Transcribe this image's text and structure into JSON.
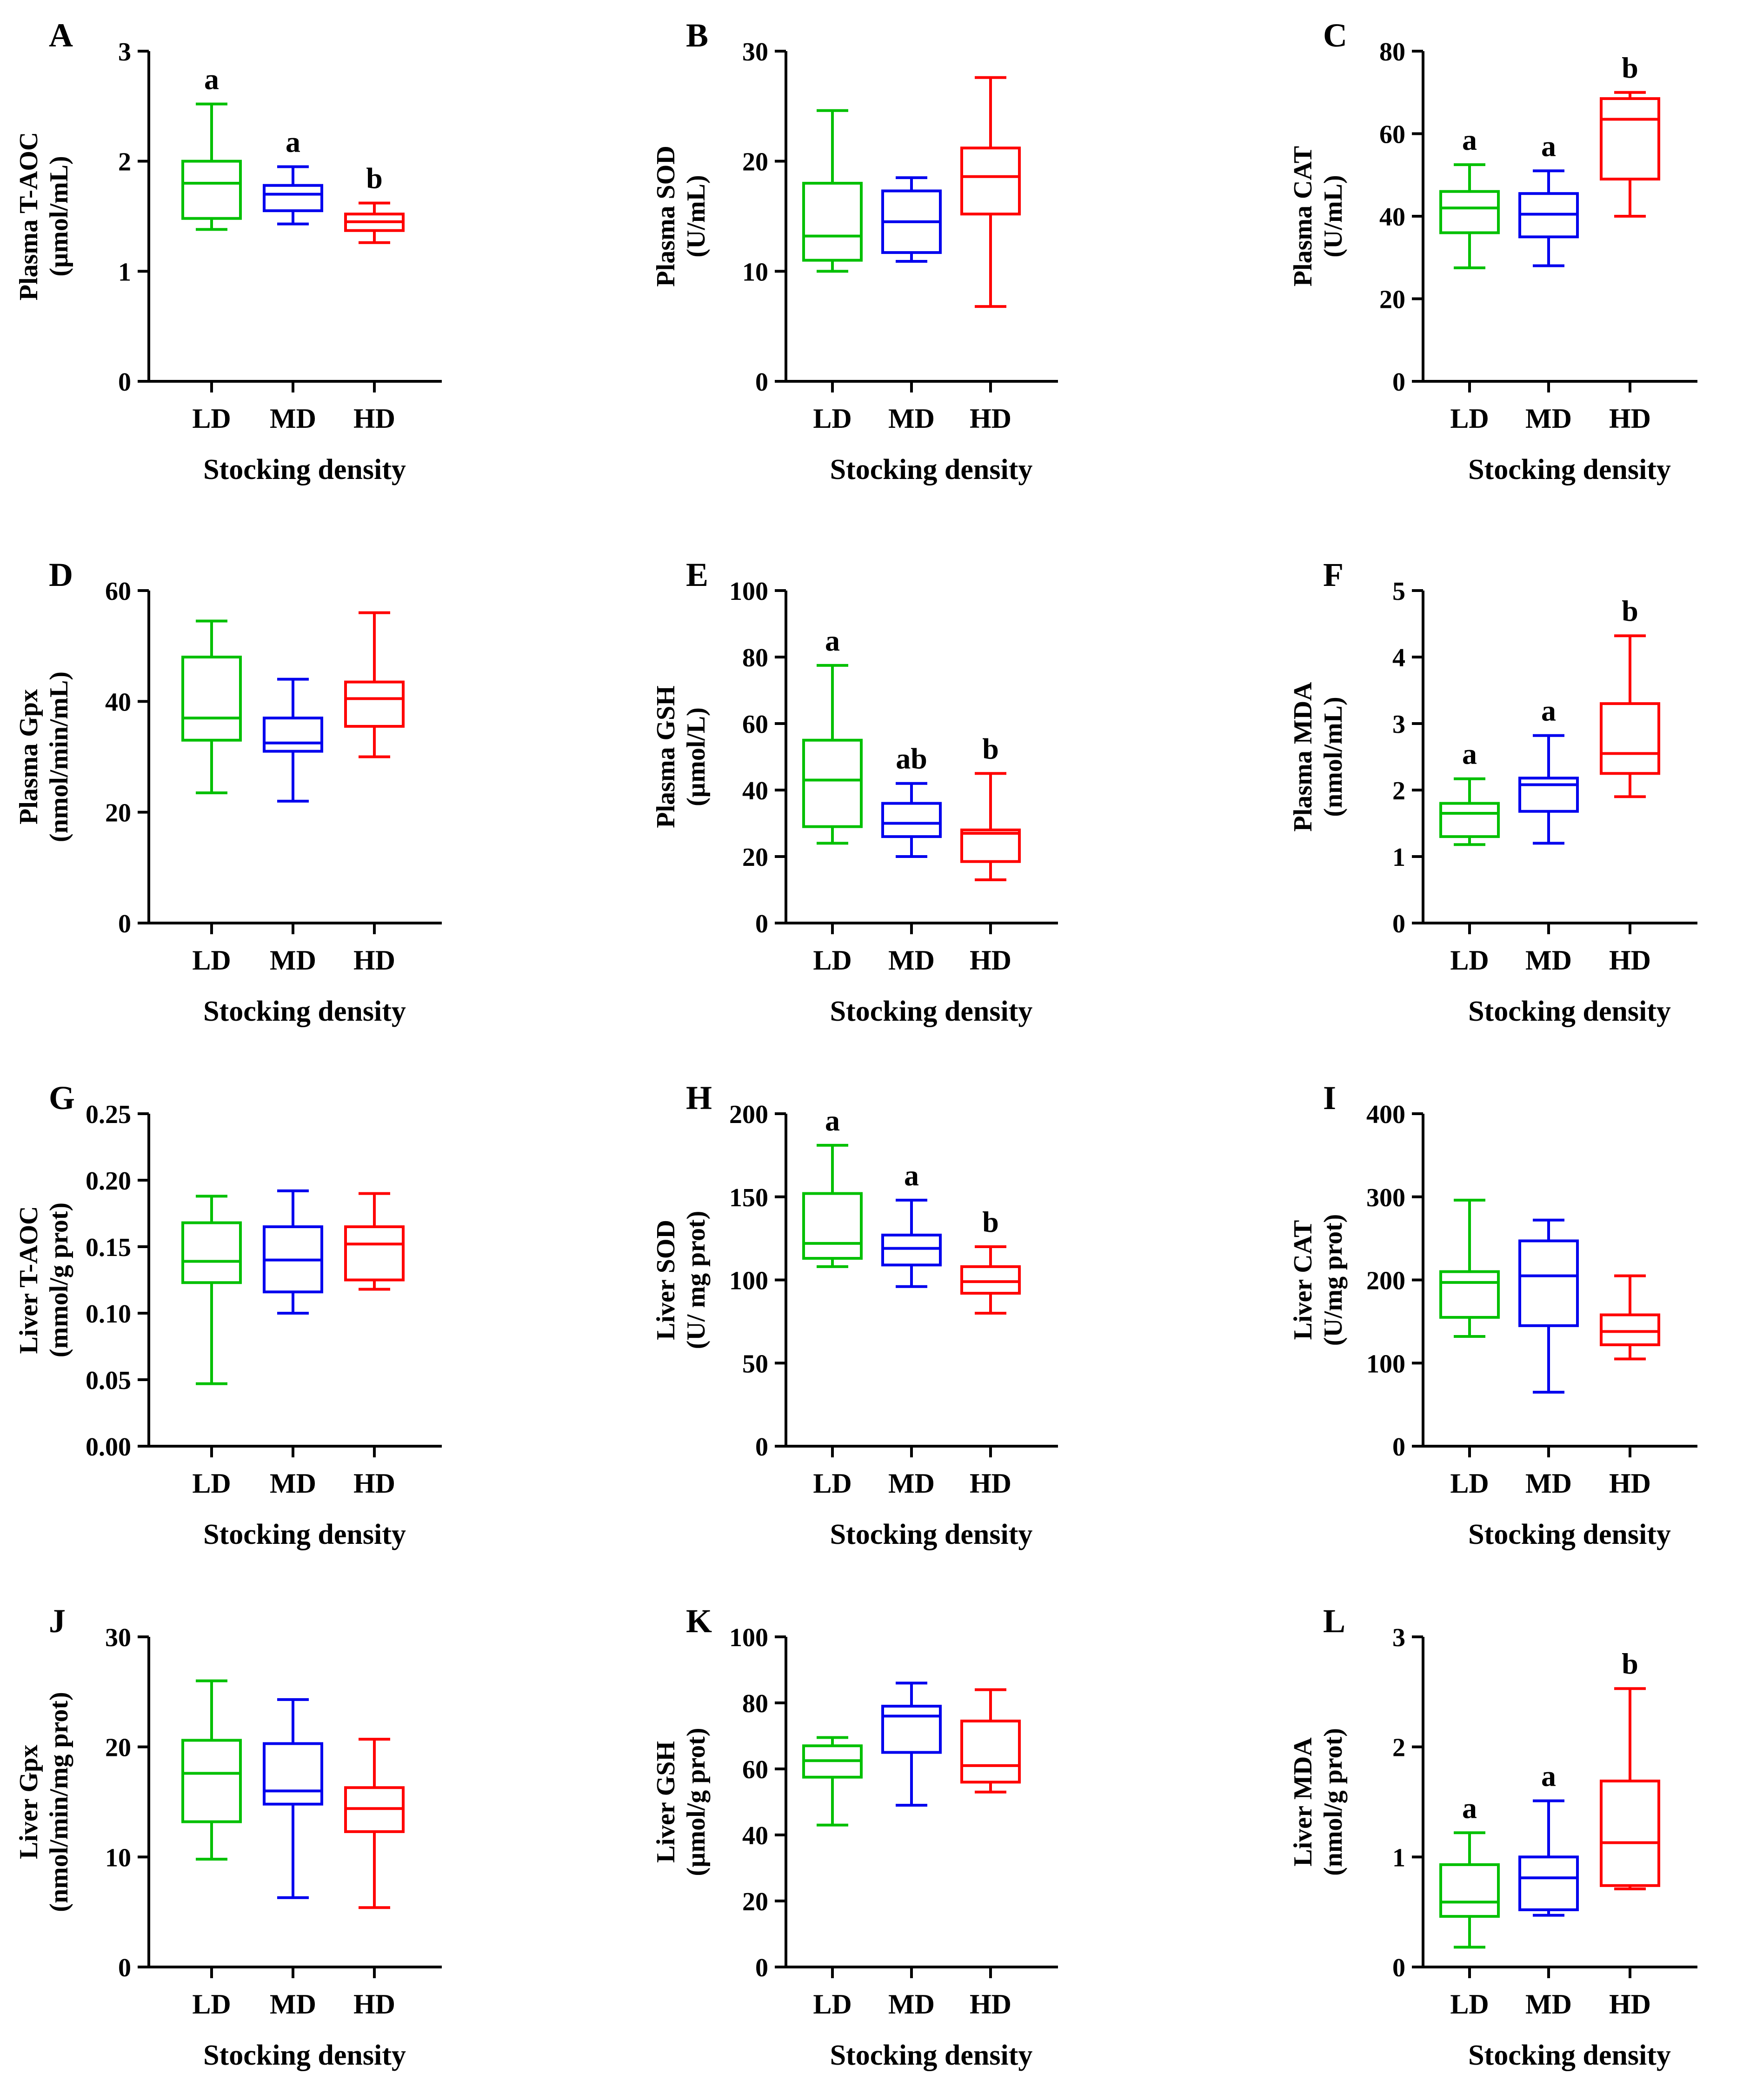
{
  "figure": {
    "colors": {
      "LD": "#00c000",
      "MD": "#0000ee",
      "HD": "#ff0000",
      "axis": "#000000"
    }
  },
  "chart_data": [
    {
      "id": "A",
      "type": "box",
      "panel_label": "A",
      "ylabel_lines": [
        "Plasma T-AOC",
        "(µmol/mL)"
      ],
      "xlabel": "Stocking density",
      "categories": [
        "LD",
        "MD",
        "HD"
      ],
      "ylim": [
        0,
        3
      ],
      "yticks": [
        "0",
        "1",
        "2",
        "3"
      ],
      "boxes": [
        {
          "group": "LD",
          "min": 1.38,
          "q1": 1.48,
          "median": 1.8,
          "q3": 2.0,
          "max": 2.52
        },
        {
          "group": "MD",
          "min": 1.43,
          "q1": 1.55,
          "median": 1.7,
          "q3": 1.78,
          "max": 1.95
        },
        {
          "group": "HD",
          "min": 1.26,
          "q1": 1.37,
          "median": 1.45,
          "q3": 1.52,
          "max": 1.62
        }
      ],
      "significance": [
        "a",
        "a",
        "b"
      ]
    },
    {
      "id": "B",
      "type": "box",
      "panel_label": "B",
      "ylabel_lines": [
        "Plasma SOD",
        "(U/mL)"
      ],
      "xlabel": "Stocking density",
      "categories": [
        "LD",
        "MD",
        "HD"
      ],
      "ylim": [
        0,
        30
      ],
      "yticks": [
        "0",
        "10",
        "20",
        "30"
      ],
      "boxes": [
        {
          "group": "LD",
          "min": 10.0,
          "q1": 11.0,
          "median": 13.2,
          "q3": 18.0,
          "max": 24.6
        },
        {
          "group": "MD",
          "min": 10.9,
          "q1": 11.7,
          "median": 14.5,
          "q3": 17.3,
          "max": 18.5
        },
        {
          "group": "HD",
          "min": 6.8,
          "q1": 15.2,
          "median": 18.6,
          "q3": 21.2,
          "max": 27.6
        }
      ],
      "significance": [
        "",
        "",
        ""
      ]
    },
    {
      "id": "C",
      "type": "box",
      "panel_label": "C",
      "ylabel_lines": [
        "Plasma CAT",
        "(U/mL)"
      ],
      "xlabel": "Stocking density",
      "categories": [
        "LD",
        "MD",
        "HD"
      ],
      "ylim": [
        0,
        80
      ],
      "yticks": [
        "0",
        "20",
        "40",
        "60",
        "80"
      ],
      "boxes": [
        {
          "group": "LD",
          "min": 27.5,
          "q1": 36.0,
          "median": 42.0,
          "q3": 46.0,
          "max": 52.5
        },
        {
          "group": "MD",
          "min": 28.0,
          "q1": 35.0,
          "median": 40.5,
          "q3": 45.5,
          "max": 51.0
        },
        {
          "group": "HD",
          "min": 40.0,
          "q1": 49.0,
          "median": 63.5,
          "q3": 68.5,
          "max": 70.0
        }
      ],
      "significance": [
        "a",
        "a",
        "b"
      ]
    },
    {
      "id": "D",
      "type": "box",
      "panel_label": "D",
      "ylabel_lines": [
        "Plasma Gpx",
        "(nmol/min/mL)"
      ],
      "xlabel": "Stocking density",
      "categories": [
        "LD",
        "MD",
        "HD"
      ],
      "ylim": [
        0,
        60
      ],
      "yticks": [
        "0",
        "20",
        "40",
        "60"
      ],
      "boxes": [
        {
          "group": "LD",
          "min": 23.5,
          "q1": 33.0,
          "median": 37.0,
          "q3": 48.0,
          "max": 54.5
        },
        {
          "group": "MD",
          "min": 22.0,
          "q1": 31.0,
          "median": 32.5,
          "q3": 37.0,
          "max": 44.0
        },
        {
          "group": "HD",
          "min": 30.0,
          "q1": 35.5,
          "median": 40.5,
          "q3": 43.5,
          "max": 56.0
        }
      ],
      "significance": [
        "",
        "",
        ""
      ]
    },
    {
      "id": "E",
      "type": "box",
      "panel_label": "E",
      "ylabel_lines": [
        "Plasma GSH",
        "(µmol/L)"
      ],
      "xlabel": "Stocking density",
      "categories": [
        "LD",
        "MD",
        "HD"
      ],
      "ylim": [
        0,
        100
      ],
      "yticks": [
        "0",
        "20",
        "40",
        "60",
        "80",
        "100"
      ],
      "boxes": [
        {
          "group": "LD",
          "min": 24.0,
          "q1": 29.0,
          "median": 43.0,
          "q3": 55.0,
          "max": 77.5
        },
        {
          "group": "MD",
          "min": 20.0,
          "q1": 26.0,
          "median": 30.0,
          "q3": 36.0,
          "max": 42.0
        },
        {
          "group": "HD",
          "min": 13.0,
          "q1": 18.5,
          "median": 27.0,
          "q3": 28.0,
          "max": 45.0
        }
      ],
      "significance": [
        "a",
        "ab",
        "b"
      ]
    },
    {
      "id": "F",
      "type": "box",
      "panel_label": "F",
      "ylabel_lines": [
        "Plasma MDA",
        "(nmol/mL)"
      ],
      "xlabel": "Stocking density",
      "categories": [
        "LD",
        "MD",
        "HD"
      ],
      "ylim": [
        0,
        5
      ],
      "yticks": [
        "0",
        "1",
        "2",
        "3",
        "4",
        "5"
      ],
      "boxes": [
        {
          "group": "LD",
          "min": 1.18,
          "q1": 1.3,
          "median": 1.65,
          "q3": 1.8,
          "max": 2.17
        },
        {
          "group": "MD",
          "min": 1.2,
          "q1": 1.68,
          "median": 2.08,
          "q3": 2.18,
          "max": 2.82
        },
        {
          "group": "HD",
          "min": 1.9,
          "q1": 2.25,
          "median": 2.55,
          "q3": 3.3,
          "max": 4.32
        }
      ],
      "significance": [
        "a",
        "a",
        "b"
      ]
    },
    {
      "id": "G",
      "type": "box",
      "panel_label": "G",
      "ylabel_lines": [
        "Liver T-AOC",
        "(mmol/g prot)"
      ],
      "xlabel": "Stocking density",
      "categories": [
        "LD",
        "MD",
        "HD"
      ],
      "ylim": [
        0,
        0.25
      ],
      "yticks": [
        "0.00",
        "0.05",
        "0.10",
        "0.15",
        "0.20",
        "0.25"
      ],
      "boxes": [
        {
          "group": "LD",
          "min": 0.047,
          "q1": 0.123,
          "median": 0.139,
          "q3": 0.168,
          "max": 0.188
        },
        {
          "group": "MD",
          "min": 0.1,
          "q1": 0.116,
          "median": 0.14,
          "q3": 0.165,
          "max": 0.192
        },
        {
          "group": "HD",
          "min": 0.118,
          "q1": 0.125,
          "median": 0.152,
          "q3": 0.165,
          "max": 0.19
        }
      ],
      "significance": [
        "",
        "",
        ""
      ]
    },
    {
      "id": "H",
      "type": "box",
      "panel_label": "H",
      "ylabel_lines": [
        "Liver SOD",
        "(U/ mg prot)"
      ],
      "xlabel": "Stocking density",
      "categories": [
        "LD",
        "MD",
        "HD"
      ],
      "ylim": [
        0,
        200
      ],
      "yticks": [
        "0",
        "50",
        "100",
        "150",
        "200"
      ],
      "boxes": [
        {
          "group": "LD",
          "min": 108.0,
          "q1": 113.0,
          "median": 122.0,
          "q3": 152.0,
          "max": 181.0
        },
        {
          "group": "MD",
          "min": 96.0,
          "q1": 109.0,
          "median": 119.0,
          "q3": 127.0,
          "max": 148.0
        },
        {
          "group": "HD",
          "min": 80.0,
          "q1": 92.0,
          "median": 99.0,
          "q3": 108.0,
          "max": 120.0
        }
      ],
      "significance": [
        "a",
        "a",
        "b"
      ]
    },
    {
      "id": "I",
      "type": "box",
      "panel_label": "I",
      "ylabel_lines": [
        "Liver CAT",
        "(U/mg prot)"
      ],
      "xlabel": "Stocking density",
      "categories": [
        "LD",
        "MD",
        "HD"
      ],
      "ylim": [
        0,
        400
      ],
      "yticks": [
        "0",
        "100",
        "200",
        "300",
        "400"
      ],
      "boxes": [
        {
          "group": "LD",
          "min": 132.0,
          "q1": 155.0,
          "median": 197.0,
          "q3": 210.0,
          "max": 296.0
        },
        {
          "group": "MD",
          "min": 65.0,
          "q1": 145.0,
          "median": 205.0,
          "q3": 247.0,
          "max": 272.0
        },
        {
          "group": "HD",
          "min": 105.0,
          "q1": 122.0,
          "median": 138.0,
          "q3": 158.0,
          "max": 205.0
        }
      ],
      "significance": [
        "",
        "",
        ""
      ]
    },
    {
      "id": "J",
      "type": "box",
      "panel_label": "J",
      "ylabel_lines": [
        "Liver Gpx",
        "(nmol/min/mg prot)"
      ],
      "xlabel": "Stocking density",
      "categories": [
        "LD",
        "MD",
        "HD"
      ],
      "ylim": [
        0,
        30
      ],
      "yticks": [
        "0",
        "10",
        "20",
        "30"
      ],
      "boxes": [
        {
          "group": "LD",
          "min": 9.8,
          "q1": 13.2,
          "median": 17.6,
          "q3": 20.6,
          "max": 26.0
        },
        {
          "group": "MD",
          "min": 6.3,
          "q1": 14.8,
          "median": 16.0,
          "q3": 20.3,
          "max": 24.3
        },
        {
          "group": "HD",
          "min": 5.4,
          "q1": 12.3,
          "median": 14.4,
          "q3": 16.3,
          "max": 20.7
        }
      ],
      "significance": [
        "",
        "",
        ""
      ]
    },
    {
      "id": "K",
      "type": "box",
      "panel_label": "K",
      "ylabel_lines": [
        "Liver GSH",
        "(µmol/g prot)"
      ],
      "xlabel": "Stocking density",
      "categories": [
        "LD",
        "MD",
        "HD"
      ],
      "ylim": [
        0,
        100
      ],
      "yticks": [
        "0",
        "20",
        "40",
        "60",
        "80",
        "100"
      ],
      "boxes": [
        {
          "group": "LD",
          "min": 43.0,
          "q1": 57.5,
          "median": 62.5,
          "q3": 67.0,
          "max": 69.5
        },
        {
          "group": "MD",
          "min": 49.0,
          "q1": 65.0,
          "median": 76.0,
          "q3": 79.0,
          "max": 86.0
        },
        {
          "group": "HD",
          "min": 53.0,
          "q1": 56.0,
          "median": 61.0,
          "q3": 74.5,
          "max": 84.0
        }
      ],
      "significance": [
        "",
        "",
        ""
      ]
    },
    {
      "id": "L",
      "type": "box",
      "panel_label": "L",
      "ylabel_lines": [
        "Liver MDA",
        "(nmol/g prot)"
      ],
      "xlabel": "Stocking density",
      "categories": [
        "LD",
        "MD",
        "HD"
      ],
      "ylim": [
        0,
        3
      ],
      "yticks": [
        "0",
        "1",
        "2",
        "3"
      ],
      "boxes": [
        {
          "group": "LD",
          "min": 0.18,
          "q1": 0.46,
          "median": 0.59,
          "q3": 0.93,
          "max": 1.22
        },
        {
          "group": "MD",
          "min": 0.47,
          "q1": 0.52,
          "median": 0.81,
          "q3": 1.0,
          "max": 1.51
        },
        {
          "group": "HD",
          "min": 0.71,
          "q1": 0.74,
          "median": 1.13,
          "q3": 1.69,
          "max": 2.53
        }
      ],
      "significance": [
        "a",
        "a",
        "b"
      ]
    }
  ]
}
